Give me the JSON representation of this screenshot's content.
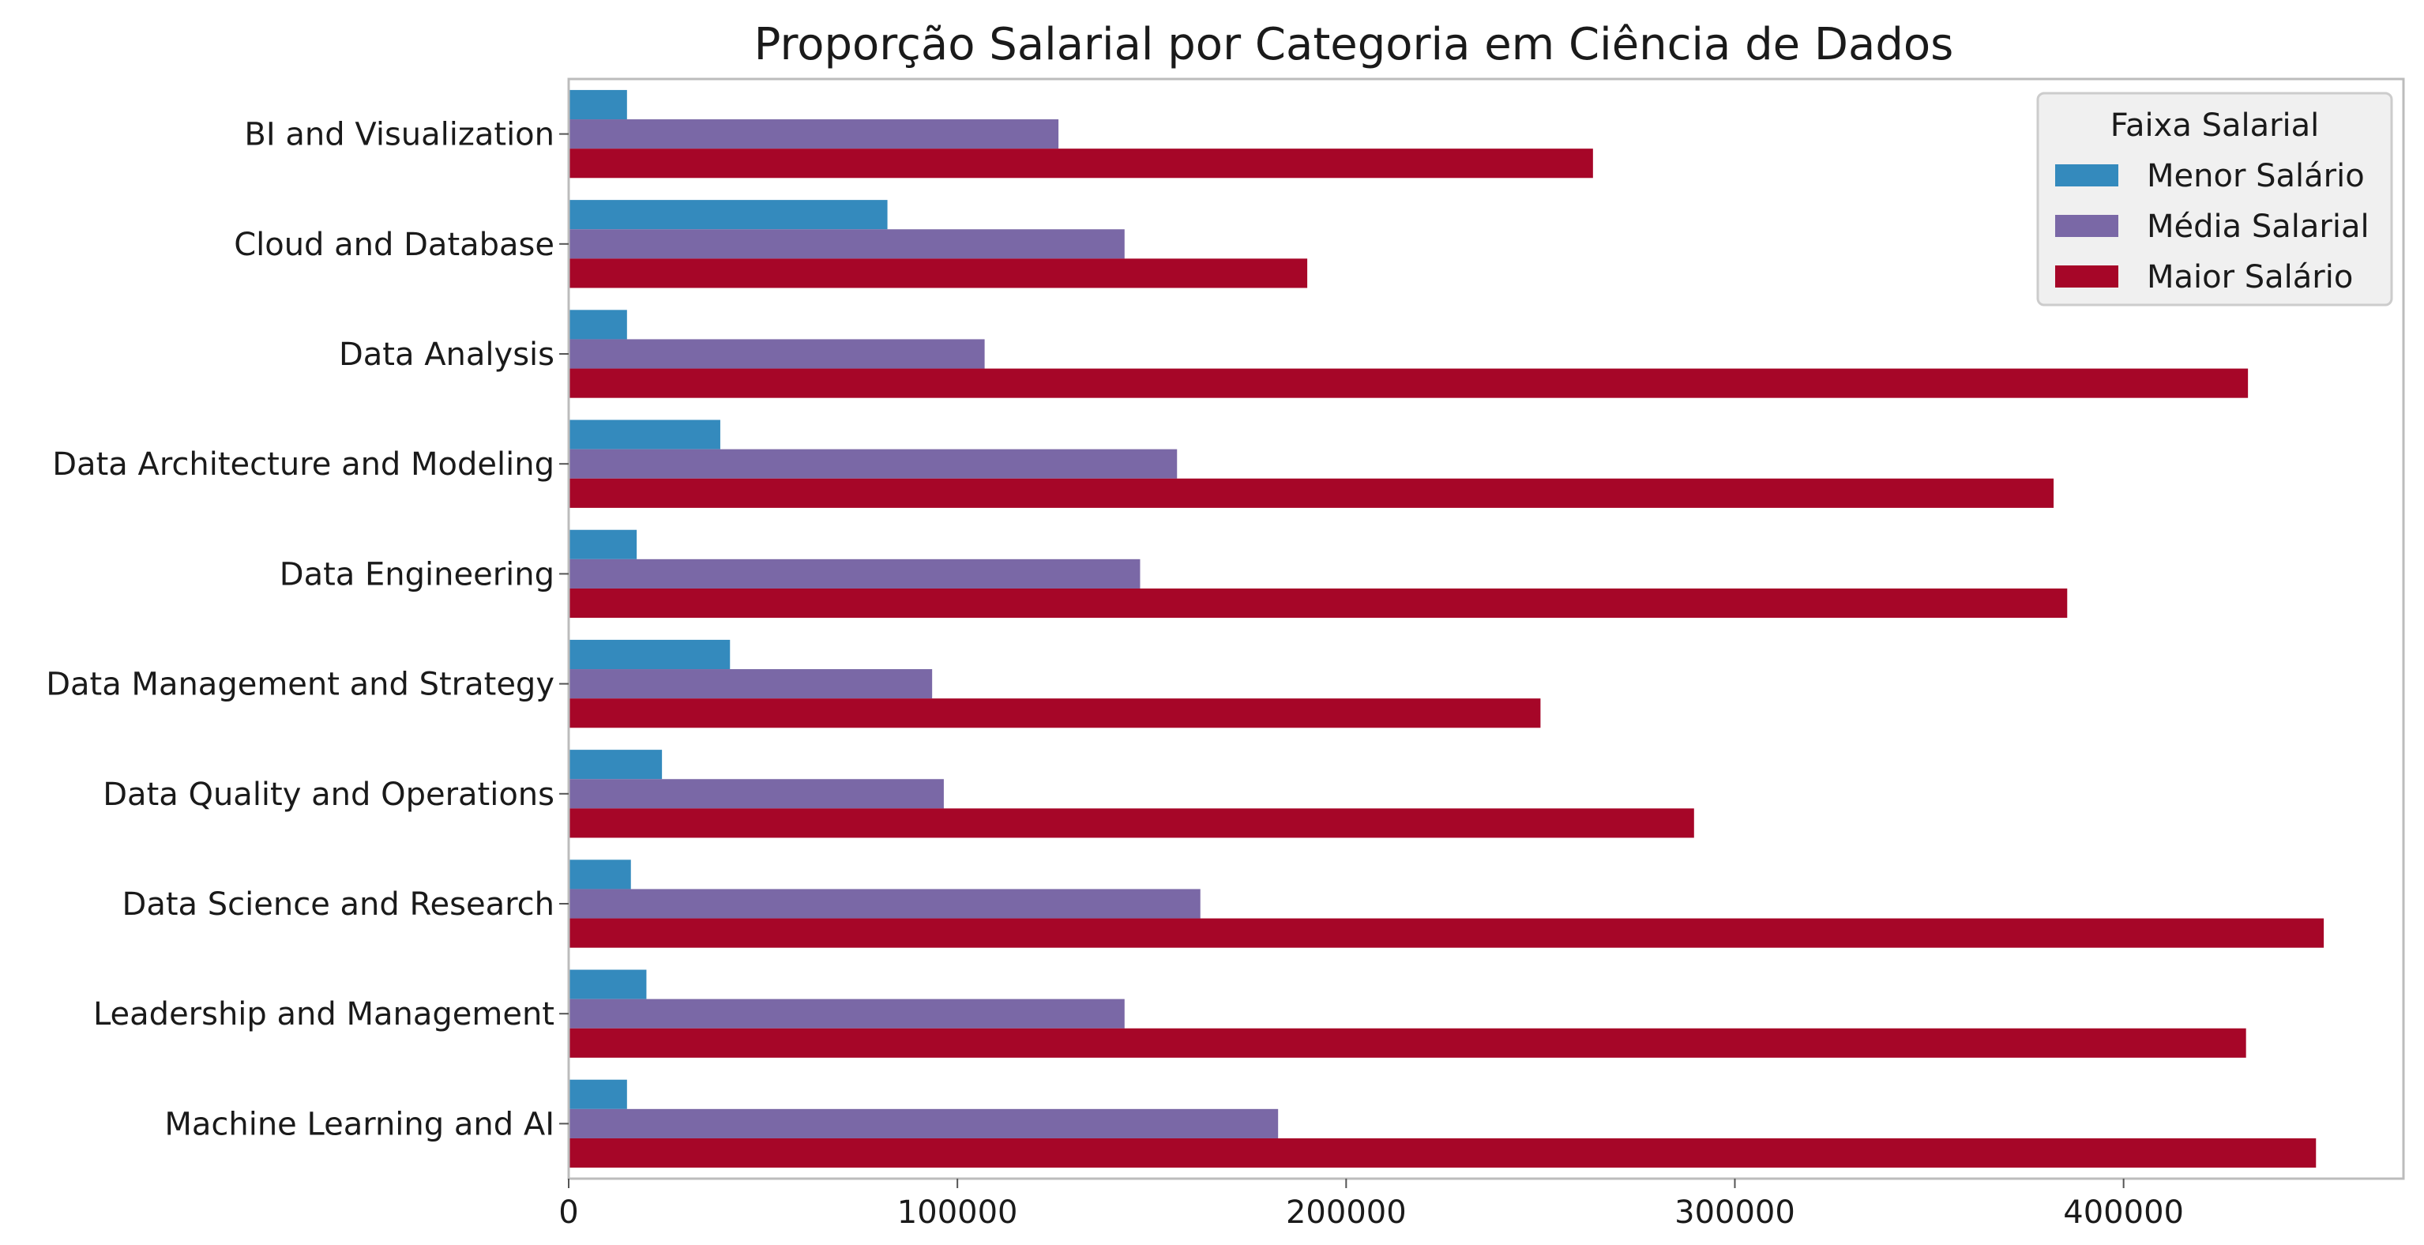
{
  "chart_data": {
    "type": "bar",
    "orientation": "horizontal",
    "title": "Proporção Salarial por Categoria em Ciência de Dados",
    "xlabel": "",
    "ylabel": "",
    "xlim": [
      0,
      472000
    ],
    "xticks": [
      0,
      100000,
      200000,
      300000,
      400000
    ],
    "xtick_labels": [
      "0",
      "100000",
      "200000",
      "300000",
      "400000"
    ],
    "grid": false,
    "legend": {
      "title": "Faixa Salarial",
      "position": "top-right"
    },
    "categories": [
      "BI and Visualization",
      "Cloud and Database",
      "Data Analysis",
      "Data Architecture and Modeling",
      "Data Engineering",
      "Data Management and Strategy",
      "Data Quality and Operations",
      "Data Science and Research",
      "Leadership and Management",
      "Machine Learning and AI"
    ],
    "series": [
      {
        "name": "Menor Salário",
        "color": "#348abd",
        "values": [
          15000,
          82000,
          15000,
          39000,
          17500,
          41500,
          24000,
          16000,
          20000,
          15000
        ]
      },
      {
        "name": "Média Salarial",
        "color": "#7a68a6",
        "values": [
          126000,
          143000,
          107000,
          156500,
          147000,
          93500,
          96500,
          162500,
          143000,
          182500
        ]
      },
      {
        "name": "Maior Salário",
        "color": "#a60628",
        "values": [
          263500,
          190000,
          432000,
          382000,
          385500,
          250000,
          289500,
          451500,
          431500,
          449500
        ]
      }
    ]
  }
}
